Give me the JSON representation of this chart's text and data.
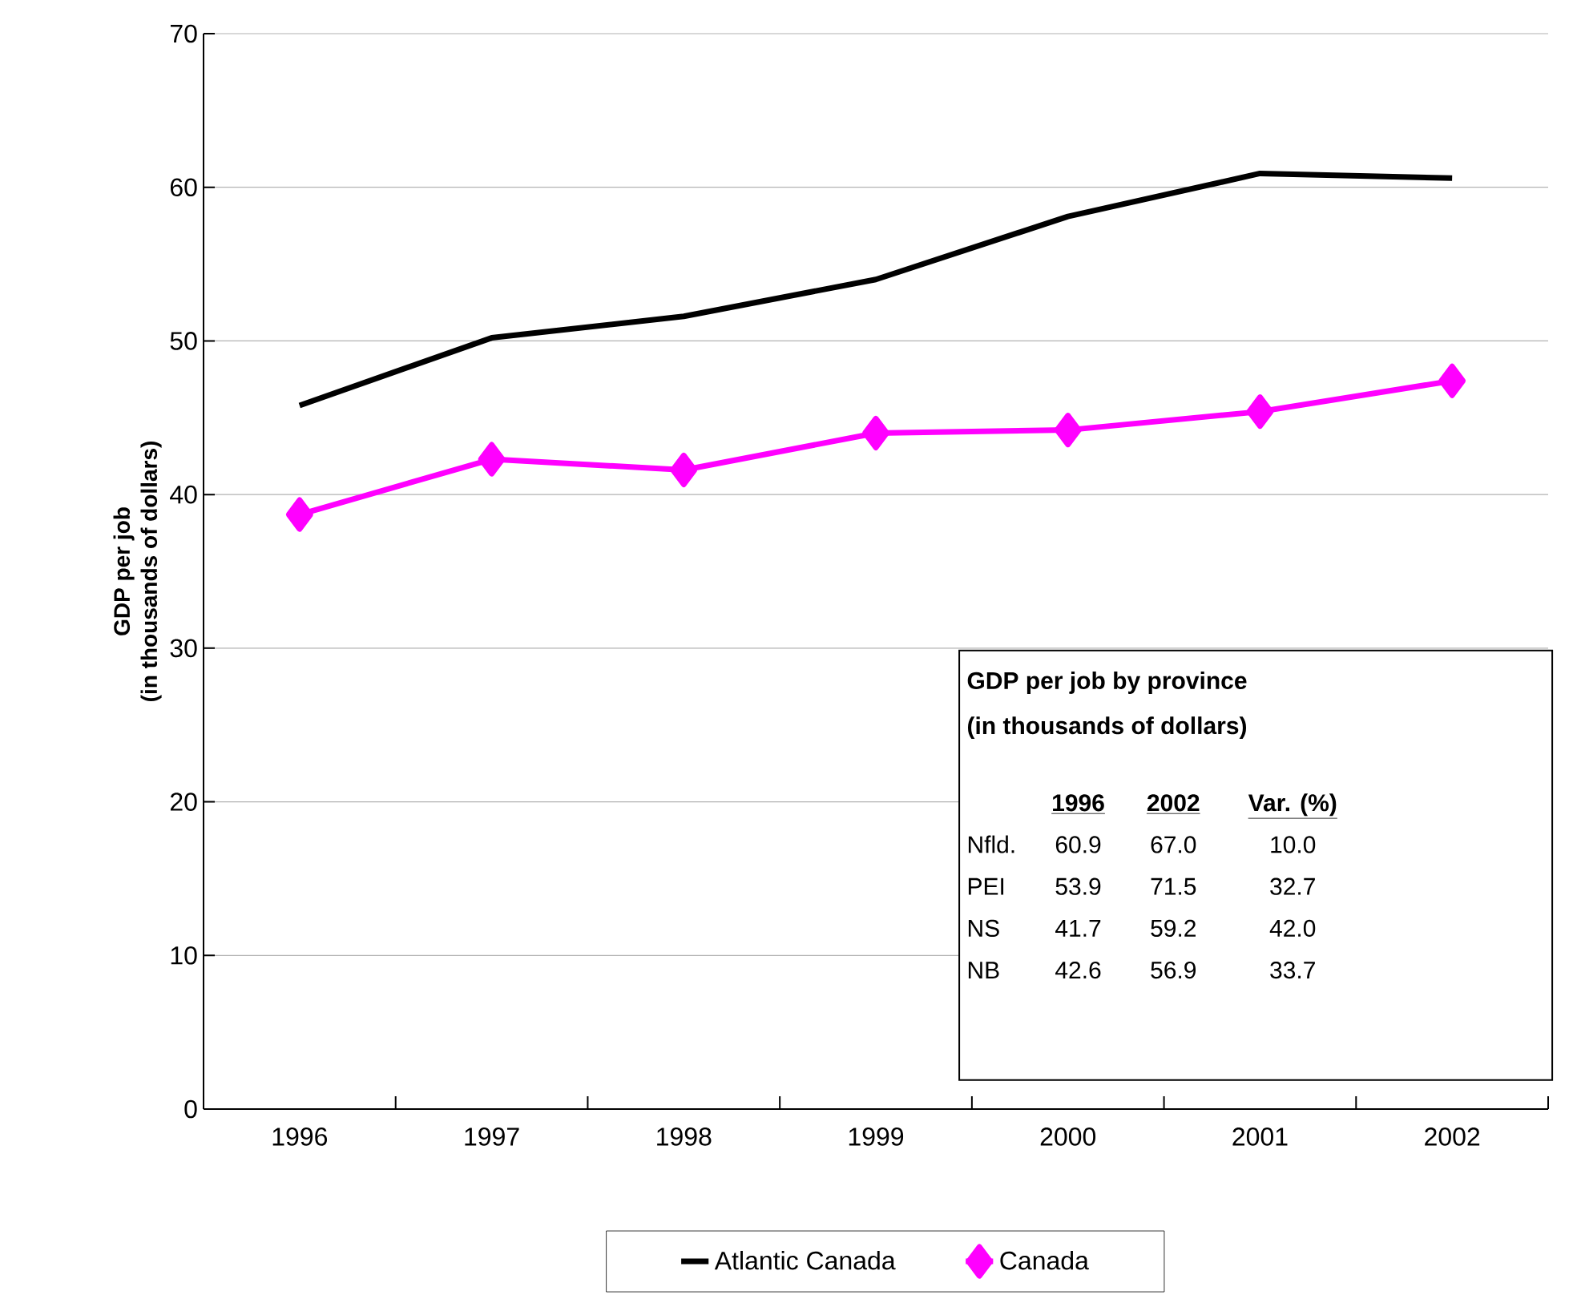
{
  "chart_data": {
    "type": "line",
    "ylabel": "GDP per job\n(in thousands of dollars)",
    "categories": [
      "1996",
      "1997",
      "1998",
      "1999",
      "2000",
      "2001",
      "2002"
    ],
    "series": [
      {
        "name": "Atlantic Canada",
        "color": "#000000",
        "marker": "none",
        "values": [
          45.8,
          50.2,
          51.6,
          54.0,
          58.1,
          60.9,
          60.6
        ]
      },
      {
        "name": "Canada",
        "color": "#ff00ff",
        "marker": "diamond",
        "values": [
          38.7,
          42.3,
          41.6,
          44.0,
          44.2,
          45.4,
          47.4
        ]
      }
    ],
    "ylim": [
      0,
      70
    ],
    "yticks": [
      0,
      10,
      20,
      30,
      40,
      50,
      60,
      70
    ],
    "grid": "y",
    "legend": "bottom",
    "annotations": [
      "GDP per job by province",
      "(in thousands of dollars)",
      "1996",
      "2002",
      "Var. (%)",
      "Nfld.",
      "60.9",
      "67.0",
      "10.0",
      "PEI",
      "53.9",
      "71.5",
      "32.7",
      "NS",
      "41.7",
      "59.2",
      "42.0",
      "NB",
      "42.6",
      "56.9",
      "33.7"
    ]
  }
}
